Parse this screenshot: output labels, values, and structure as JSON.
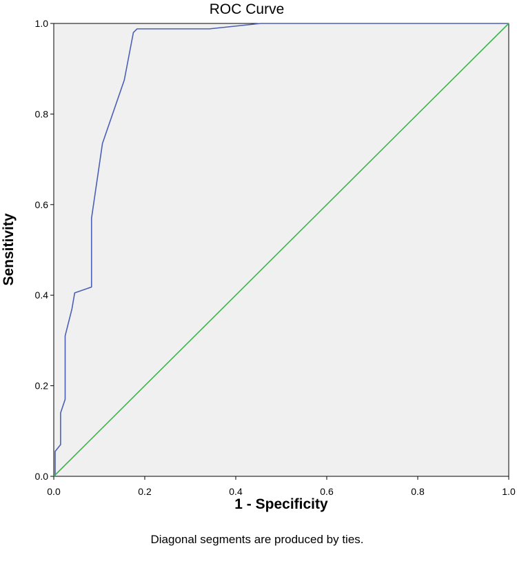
{
  "chart_data": {
    "type": "line",
    "title": "ROC Curve",
    "xlabel": "1 - Specificity",
    "ylabel": "Sensitivity",
    "footnote": "Diagonal segments are produced by ties.",
    "xlim": [
      0,
      1
    ],
    "ylim": [
      0,
      1
    ],
    "x_ticks": [
      "0.0",
      "0.2",
      "0.4",
      "0.6",
      "0.8",
      "1.0"
    ],
    "y_ticks": [
      "0.0",
      "0.2",
      "0.4",
      "0.6",
      "0.8",
      "1.0"
    ],
    "grid": false,
    "legend": "none",
    "series": [
      {
        "color": "#4a5fb4",
        "points": [
          [
            0.0,
            0.0
          ],
          [
            0.003,
            0.0
          ],
          [
            0.003,
            0.055
          ],
          [
            0.015,
            0.07
          ],
          [
            0.015,
            0.14
          ],
          [
            0.025,
            0.17
          ],
          [
            0.025,
            0.31
          ],
          [
            0.04,
            0.37
          ],
          [
            0.046,
            0.405
          ],
          [
            0.083,
            0.418
          ],
          [
            0.083,
            0.57
          ],
          [
            0.107,
            0.735
          ],
          [
            0.155,
            0.875
          ],
          [
            0.175,
            0.98
          ],
          [
            0.183,
            0.988
          ],
          [
            0.342,
            0.988
          ],
          [
            0.455,
            1.0
          ],
          [
            1.0,
            1.0
          ]
        ]
      },
      {
        "color": "#3cb44b",
        "points": [
          [
            0,
            0
          ],
          [
            1,
            1
          ]
        ]
      }
    ],
    "plot_background": "#f0f0f0"
  }
}
